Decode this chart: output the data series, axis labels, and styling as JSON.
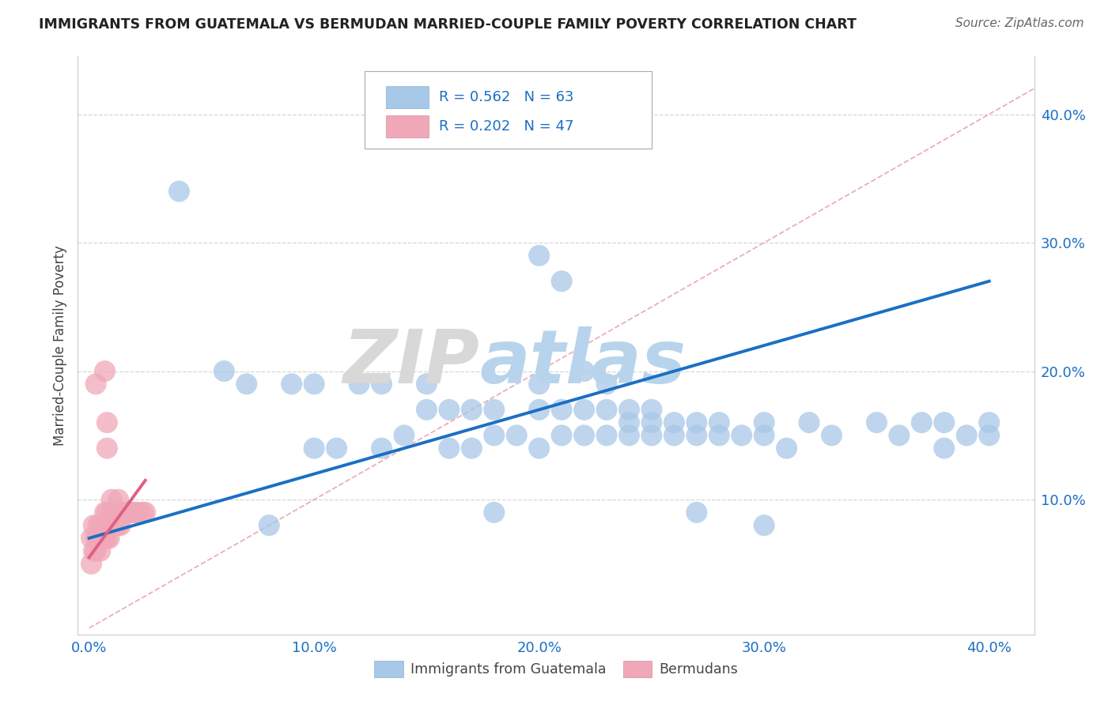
{
  "title": "IMMIGRANTS FROM GUATEMALA VS BERMUDAN MARRIED-COUPLE FAMILY POVERTY CORRELATION CHART",
  "source": "Source: ZipAtlas.com",
  "xlabel_blue": "Immigrants from Guatemala",
  "xlabel_pink": "Bermudans",
  "ylabel": "Married-Couple Family Poverty",
  "xlim": [
    -0.005,
    0.42
  ],
  "ylim": [
    -0.005,
    0.445
  ],
  "xticks": [
    0.0,
    0.1,
    0.2,
    0.3,
    0.4
  ],
  "yticks": [
    0.1,
    0.2,
    0.3,
    0.4
  ],
  "ytick_labels": [
    "10.0%",
    "20.0%",
    "30.0%",
    "40.0%"
  ],
  "xtick_labels": [
    "0.0%",
    "10.0%",
    "20.0%",
    "30.0%",
    "40.0%"
  ],
  "legend_R_blue": "R = 0.562",
  "legend_N_blue": "N = 63",
  "legend_R_pink": "R = 0.202",
  "legend_N_pink": "N = 47",
  "blue_color": "#A8C8E8",
  "pink_color": "#F0A8B8",
  "line_blue": "#1A6FC4",
  "line_pink": "#E06080",
  "diag_color": "#E8A0B0",
  "blue_scatter_x": [
    0.04,
    0.06,
    0.07,
    0.08,
    0.09,
    0.1,
    0.1,
    0.11,
    0.12,
    0.13,
    0.13,
    0.14,
    0.15,
    0.15,
    0.16,
    0.16,
    0.17,
    0.17,
    0.18,
    0.18,
    0.19,
    0.2,
    0.2,
    0.2,
    0.21,
    0.21,
    0.22,
    0.22,
    0.23,
    0.23,
    0.24,
    0.24,
    0.24,
    0.25,
    0.25,
    0.25,
    0.26,
    0.26,
    0.27,
    0.27,
    0.28,
    0.28,
    0.29,
    0.3,
    0.3,
    0.31,
    0.32,
    0.33,
    0.35,
    0.36,
    0.37,
    0.38,
    0.38,
    0.39,
    0.4,
    0.4,
    0.2,
    0.21,
    0.22,
    0.23,
    0.18,
    0.27,
    0.3
  ],
  "blue_scatter_y": [
    0.34,
    0.2,
    0.19,
    0.08,
    0.19,
    0.14,
    0.19,
    0.14,
    0.19,
    0.14,
    0.19,
    0.15,
    0.17,
    0.19,
    0.14,
    0.17,
    0.14,
    0.17,
    0.15,
    0.17,
    0.15,
    0.14,
    0.17,
    0.19,
    0.15,
    0.17,
    0.15,
    0.17,
    0.15,
    0.17,
    0.15,
    0.16,
    0.17,
    0.15,
    0.16,
    0.17,
    0.15,
    0.16,
    0.15,
    0.16,
    0.15,
    0.16,
    0.15,
    0.15,
    0.16,
    0.14,
    0.16,
    0.15,
    0.16,
    0.15,
    0.16,
    0.14,
    0.16,
    0.15,
    0.15,
    0.16,
    0.29,
    0.27,
    0.2,
    0.19,
    0.09,
    0.09,
    0.08
  ],
  "pink_scatter_x": [
    0.001,
    0.001,
    0.002,
    0.002,
    0.003,
    0.003,
    0.004,
    0.004,
    0.005,
    0.005,
    0.005,
    0.006,
    0.006,
    0.007,
    0.007,
    0.007,
    0.008,
    0.008,
    0.008,
    0.009,
    0.009,
    0.01,
    0.01,
    0.01,
    0.011,
    0.011,
    0.012,
    0.012,
    0.013,
    0.013,
    0.013,
    0.014,
    0.014,
    0.015,
    0.016,
    0.017,
    0.018,
    0.019,
    0.02,
    0.021,
    0.022,
    0.024,
    0.025,
    0.003,
    0.008,
    0.007,
    0.008
  ],
  "pink_scatter_y": [
    0.07,
    0.05,
    0.06,
    0.08,
    0.06,
    0.07,
    0.07,
    0.08,
    0.06,
    0.07,
    0.08,
    0.07,
    0.08,
    0.07,
    0.08,
    0.09,
    0.07,
    0.08,
    0.09,
    0.07,
    0.08,
    0.08,
    0.09,
    0.1,
    0.08,
    0.09,
    0.08,
    0.09,
    0.08,
    0.09,
    0.1,
    0.08,
    0.09,
    0.09,
    0.09,
    0.09,
    0.09,
    0.09,
    0.09,
    0.09,
    0.09,
    0.09,
    0.09,
    0.19,
    0.14,
    0.2,
    0.16
  ]
}
